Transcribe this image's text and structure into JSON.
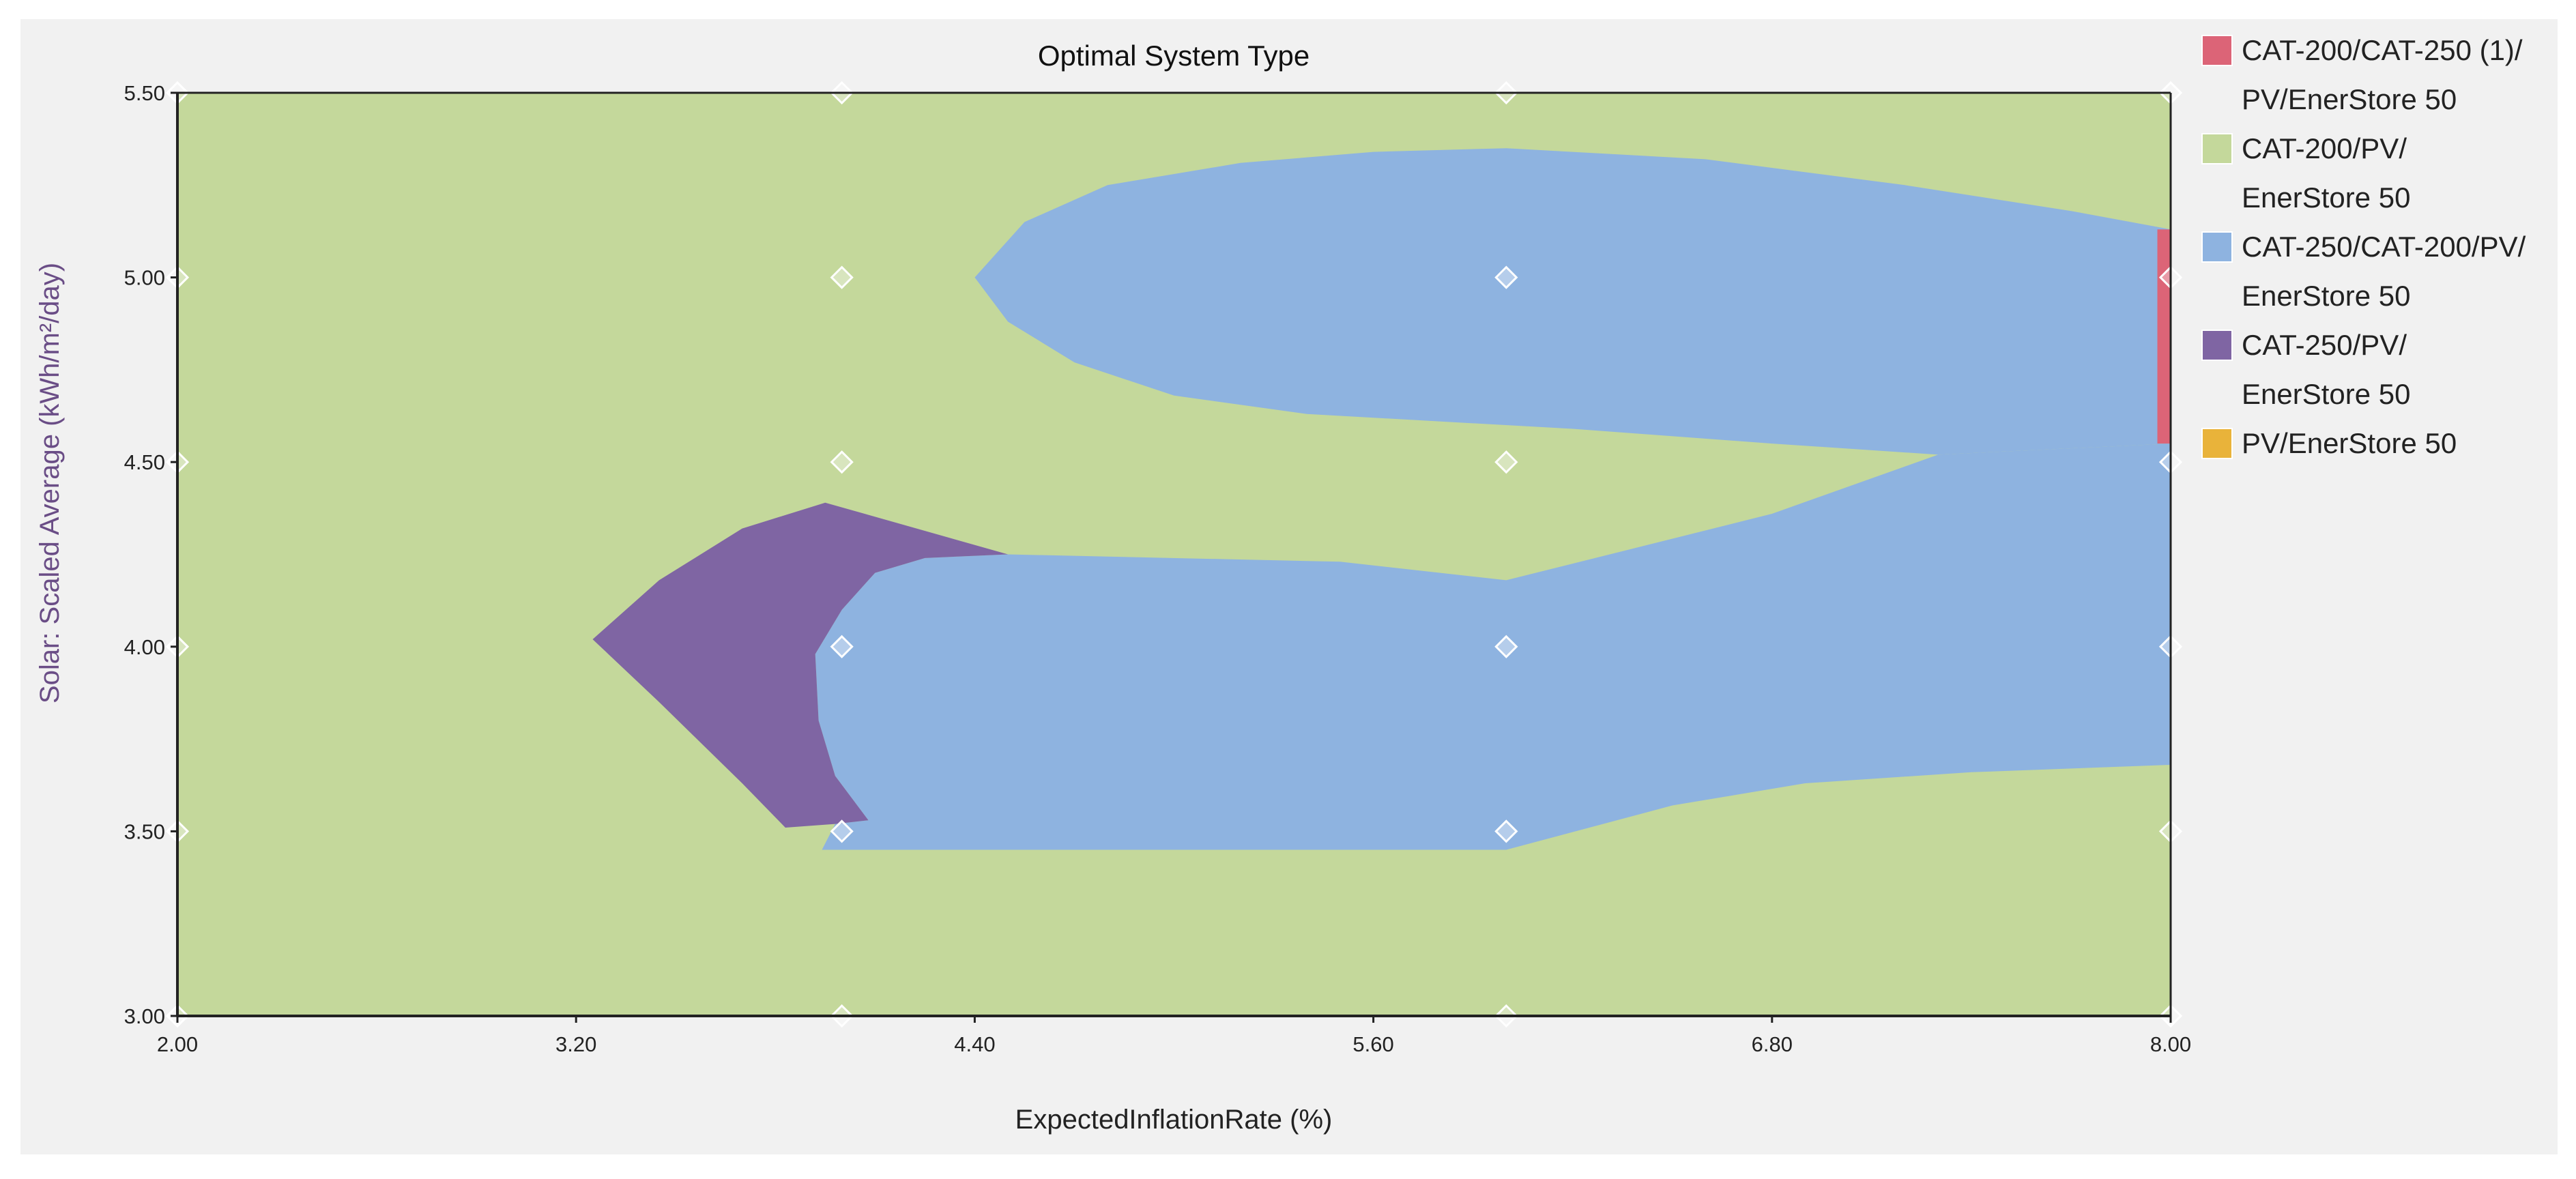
{
  "chart_data": {
    "type": "heatmap",
    "title": "Optimal System Type",
    "xlabel": "ExpectedInflationRate (%)",
    "ylabel": "Solar: Scaled Average (kWh/m²/day)",
    "xlim": [
      2.0,
      8.0
    ],
    "ylim": [
      3.0,
      5.5
    ],
    "x_ticks": [
      "2.00",
      "3.20",
      "4.40",
      "5.60",
      "6.80",
      "8.00"
    ],
    "y_ticks": [
      "3.00",
      "3.50",
      "4.00",
      "4.50",
      "5.00",
      "5.50"
    ],
    "sample_points": {
      "x": [
        2.0,
        4.0,
        6.0,
        8.0
      ],
      "y": [
        3.0,
        3.5,
        4.0,
        4.5,
        5.0,
        5.5
      ]
    },
    "legend_position": "right",
    "categories": [
      {
        "key": "cat200_cat250_1_pv_es50",
        "lines": [
          "CAT-200/CAT-250 (1)/",
          "PV/EnerStore 50"
        ],
        "color": "#dc6477"
      },
      {
        "key": "cat200_pv_es50",
        "lines": [
          "CAT-200/PV/",
          "EnerStore 50"
        ],
        "color": "#c4d89b"
      },
      {
        "key": "cat250_cat200_pv_es50",
        "lines": [
          "CAT-250/CAT-200/PV/",
          "EnerStore 50"
        ],
        "color": "#8eb3e0"
      },
      {
        "key": "cat250_pv_es50",
        "lines": [
          "CAT-250/PV/",
          "EnerStore 50"
        ],
        "color": "#7f65a3"
      },
      {
        "key": "pv_es50",
        "lines": [
          "PV/EnerStore 50"
        ],
        "color": "#e9b33a"
      }
    ],
    "background_category": "cat200_pv_es50",
    "regions": [
      {
        "category": "cat250_cat200_pv_es50",
        "name": "upper-blue-region",
        "points": [
          [
            4.4,
            5.0
          ],
          [
            4.55,
            5.15
          ],
          [
            4.8,
            5.25
          ],
          [
            5.2,
            5.31
          ],
          [
            5.6,
            5.34
          ],
          [
            6.0,
            5.35
          ],
          [
            6.6,
            5.32
          ],
          [
            7.2,
            5.25
          ],
          [
            7.7,
            5.18
          ],
          [
            8.0,
            5.13
          ],
          [
            8.0,
            4.55
          ],
          [
            7.3,
            4.52
          ],
          [
            6.8,
            4.55
          ],
          [
            6.2,
            4.59
          ],
          [
            5.4,
            4.63
          ],
          [
            5.0,
            4.68
          ],
          [
            4.7,
            4.77
          ],
          [
            4.5,
            4.88
          ]
        ]
      },
      {
        "category": "cat250_cat200_pv_es50",
        "name": "lower-blue-region",
        "points": [
          [
            4.5,
            4.25
          ],
          [
            5.5,
            4.23
          ],
          [
            6.0,
            4.18
          ],
          [
            6.4,
            4.27
          ],
          [
            6.8,
            4.36
          ],
          [
            7.3,
            4.52
          ],
          [
            8.0,
            4.55
          ],
          [
            8.0,
            3.68
          ],
          [
            7.4,
            3.66
          ],
          [
            6.9,
            3.63
          ],
          [
            6.5,
            3.57
          ],
          [
            6.0,
            3.45
          ],
          [
            5.0,
            3.45
          ],
          [
            3.94,
            3.45
          ],
          [
            3.98,
            3.52
          ],
          [
            4.08,
            3.53
          ],
          [
            3.98,
            3.65
          ],
          [
            3.93,
            3.8
          ],
          [
            3.92,
            3.98
          ],
          [
            4.0,
            4.1
          ],
          [
            4.1,
            4.2
          ],
          [
            4.25,
            4.24
          ]
        ]
      },
      {
        "category": "cat250_pv_es50",
        "name": "purple-region",
        "points": [
          [
            3.25,
            4.02
          ],
          [
            3.45,
            4.18
          ],
          [
            3.7,
            4.32
          ],
          [
            3.95,
            4.39
          ],
          [
            4.5,
            4.25
          ],
          [
            4.25,
            4.24
          ],
          [
            4.1,
            4.2
          ],
          [
            4.0,
            4.1
          ],
          [
            3.92,
            3.98
          ],
          [
            3.93,
            3.8
          ],
          [
            3.98,
            3.65
          ],
          [
            4.08,
            3.53
          ],
          [
            3.98,
            3.52
          ],
          [
            3.83,
            3.51
          ],
          [
            3.7,
            3.63
          ],
          [
            3.45,
            3.85
          ]
        ]
      },
      {
        "category": "cat200_cat250_1_pv_es50",
        "name": "red-strip-region",
        "points": [
          [
            7.96,
            5.13
          ],
          [
            8.0,
            5.13
          ],
          [
            8.0,
            4.55
          ],
          [
            7.96,
            4.55
          ]
        ]
      }
    ]
  }
}
